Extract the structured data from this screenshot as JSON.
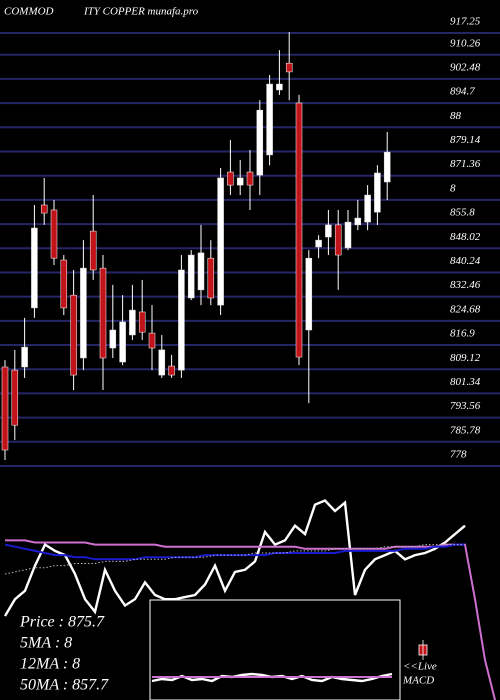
{
  "chart_data": [
    {
      "type": "candlestick",
      "title": [
        "COMMOD",
        "ITY COPPER munafa.pro"
      ],
      "up_color": "#ffffff",
      "down_color": "#c0141a",
      "grid_color": "#262666",
      "ylim": [
        778,
        917.25
      ],
      "yticks": [
        917.25,
        910.26,
        902.48,
        894.7,
        {
          "value": 886.92,
          "label": "88"
        },
        879.14,
        871.36,
        {
          "value": 863.58,
          "label": "8"
        },
        855.8,
        848.02,
        840.24,
        832.46,
        824.68,
        816.9,
        809.12,
        801.34,
        793.56,
        785.78,
        778
      ],
      "grid": true,
      "open": [
        806.3,
        805.3,
        806.3,
        825.3,
        858.4,
        856.8,
        840.7,
        829.4,
        809.2,
        850.0,
        838.1,
        812.4,
        807.9,
        816.6,
        824.0,
        817.2,
        803.7,
        806.6,
        805.3,
        828.5,
        831.1,
        841.3,
        826.2,
        869.0,
        864.8,
        869.0,
        868.0,
        874.5,
        895.4,
        904.0,
        891.2,
        818.2,
        844.9,
        848.1,
        852.0,
        844.6,
        852.0,
        852.9,
        856.1,
        865.8
      ],
      "high": [
        808.5,
        811.8,
        822.1,
        858.4,
        867.1,
        860.0,
        842.3,
        837.5,
        847.1,
        861.6,
        842.3,
        832.7,
        829.4,
        832.7,
        834.3,
        826.2,
        816.6,
        810.2,
        842.3,
        843.9,
        852.0,
        847.1,
        870.3,
        879.3,
        872.9,
        876.1,
        892.1,
        900.2,
        908.2,
        914.0,
        893.8,
        843.9,
        848.7,
        856.8,
        856.8,
        856.8,
        860.0,
        864.8,
        871.2,
        881.9
      ],
      "low": [
        776.4,
        782.8,
        802.8,
        822.1,
        852.0,
        839.1,
        823.0,
        798.9,
        805.3,
        834.3,
        798.9,
        809.2,
        806.9,
        815.0,
        815.0,
        805.3,
        802.8,
        802.8,
        802.8,
        827.8,
        826.2,
        826.2,
        823.0,
        861.6,
        861.6,
        856.8,
        861.6,
        871.2,
        893.8,
        892.1,
        806.9,
        794.7,
        841.3,
        842.3,
        831.1,
        843.9,
        850.3,
        850.3,
        852.0,
        860.0
      ],
      "close": [
        779.6,
        787.6,
        812.7,
        851.0,
        855.8,
        841.3,
        825.3,
        803.7,
        838.1,
        837.5,
        809.2,
        818.2,
        820.8,
        824.6,
        817.5,
        812.4,
        811.8,
        803.7,
        837.5,
        842.3,
        843.0,
        828.5,
        867.1,
        864.8,
        867.1,
        864.8,
        888.9,
        897.3,
        897.3,
        901.2,
        809.5,
        841.3,
        847.1,
        852.0,
        842.3,
        852.9,
        854.2,
        861.6,
        868.7,
        875.4
      ]
    },
    {
      "type": "line",
      "ylim": [
        0,
        100
      ],
      "info": [
        "Price : 875.7",
        "5MA : 8",
        "12MA : 8",
        "50MA : 857.7"
      ],
      "series": [
        {
          "color": "#ffffff",
          "values": [
            40,
            48,
            52,
            64,
            74,
            71,
            69,
            60,
            48,
            42,
            62,
            52,
            45,
            48,
            56,
            50,
            48,
            48,
            49,
            50,
            55,
            64,
            52,
            61,
            62,
            66,
            80,
            74,
            76,
            83,
            79,
            93,
            95,
            90,
            94,
            50,
            62,
            67,
            69,
            71,
            67,
            69,
            70,
            72,
            75,
            79,
            83,
            null,
            null,
            null
          ]
        },
        {
          "color": "#d070d0",
          "values": [
            76,
            76,
            76,
            75,
            75,
            75,
            75,
            75,
            75,
            74,
            74,
            74,
            74,
            74,
            74,
            74,
            73,
            73,
            73,
            73,
            73,
            73,
            73,
            73,
            73,
            73,
            73,
            73,
            73,
            73,
            72,
            72,
            72,
            72,
            72,
            72,
            72,
            72,
            72,
            73,
            73,
            73,
            73,
            73,
            74,
            74,
            74,
            48,
            19,
            0
          ]
        },
        {
          "color": "#1a1ad0",
          "values": [
            74,
            73,
            72,
            71,
            70,
            69,
            69,
            68,
            68,
            67,
            67,
            67,
            67,
            67,
            68,
            68,
            68,
            68,
            68,
            68,
            69,
            69,
            69,
            69,
            69,
            69,
            69,
            70,
            70,
            70,
            70,
            70,
            70,
            70,
            71,
            71,
            71,
            71,
            71,
            71,
            72,
            72,
            72,
            73,
            73,
            74,
            74,
            null,
            null,
            null
          ]
        },
        {
          "color": "#bbbbbb",
          "dashed": true,
          "values": [
            60,
            61,
            62,
            63,
            63,
            64,
            64,
            65,
            65,
            65,
            66,
            66,
            66,
            67,
            67,
            67,
            67,
            68,
            68,
            68,
            68,
            69,
            69,
            69,
            69,
            70,
            70,
            70,
            70,
            71,
            71,
            71,
            71,
            72,
            72,
            72,
            72,
            72,
            73,
            73,
            73,
            73,
            74,
            74,
            74,
            74,
            74,
            null,
            null,
            null
          ]
        }
      ]
    },
    {
      "type": "line",
      "ylim": [
        0,
        100
      ],
      "annotation": [
        "<<Live",
        "MACD"
      ],
      "series": [
        {
          "color": "#ffffff",
          "values": [
            19,
            21,
            20,
            24,
            20,
            21,
            19,
            24,
            23,
            25,
            26,
            25,
            23,
            24,
            21,
            24,
            20,
            19,
            23,
            21,
            20,
            19,
            21,
            24,
            26
          ]
        },
        {
          "color": "#d070d0",
          "values": [
            23,
            23,
            23,
            23,
            23,
            23,
            23,
            23,
            23,
            23,
            23,
            23,
            23,
            23,
            23,
            23,
            23,
            23,
            23,
            23,
            23,
            23,
            23,
            23,
            23
          ]
        }
      ]
    }
  ]
}
